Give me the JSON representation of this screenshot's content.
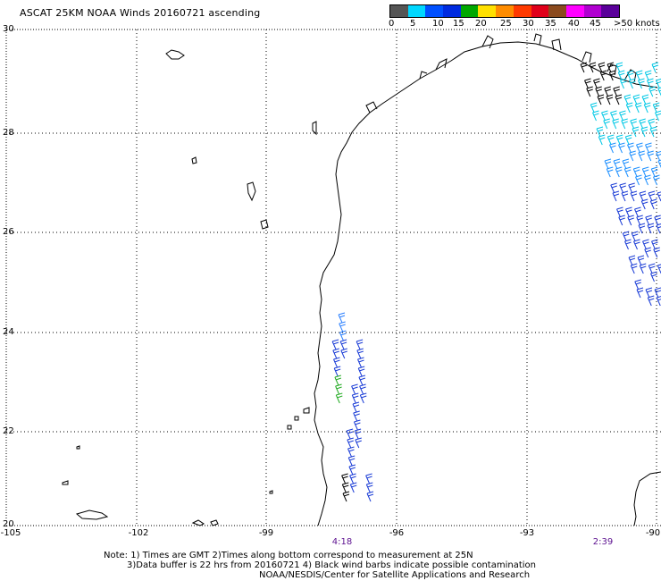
{
  "title": "ASCAT 25KM NOAA Winds 20160721 ascending",
  "legend": {
    "colors": [
      "#555555",
      "#00d7ff",
      "#0050ff",
      "#002be0",
      "#00a800",
      "#ffe000",
      "#ff8c00",
      "#ff3a00",
      "#e0001a",
      "#8b4a1e",
      "#ff00ff",
      "#b000d0",
      "#5a009a"
    ],
    "labels": [
      "0",
      "5",
      "10",
      "15",
      "20",
      "25",
      "30",
      "35",
      "40",
      "45",
      ">50 knots"
    ]
  },
  "axes": {
    "lat_labels": [
      "30",
      "28",
      "26",
      "24",
      "22",
      "20"
    ],
    "lon_labels": [
      "-105",
      "-102",
      "-99",
      "-96",
      "-93",
      "-90"
    ],
    "lon_range": [
      -105,
      -90
    ],
    "lat_range": [
      20,
      30
    ]
  },
  "times": {
    "t1": "4:18",
    "t2": "2:39"
  },
  "notes": {
    "line1": "Note: 1) Times are GMT 2)Times along bottom correspond to measurement at 25N",
    "line2": "3)Data buffer is 22 hrs from 20160721 4) Black wind barbs indicate possible contamination",
    "line3": "NOAA/NESDIS/Center for Satellite Applications and Research"
  }
}
